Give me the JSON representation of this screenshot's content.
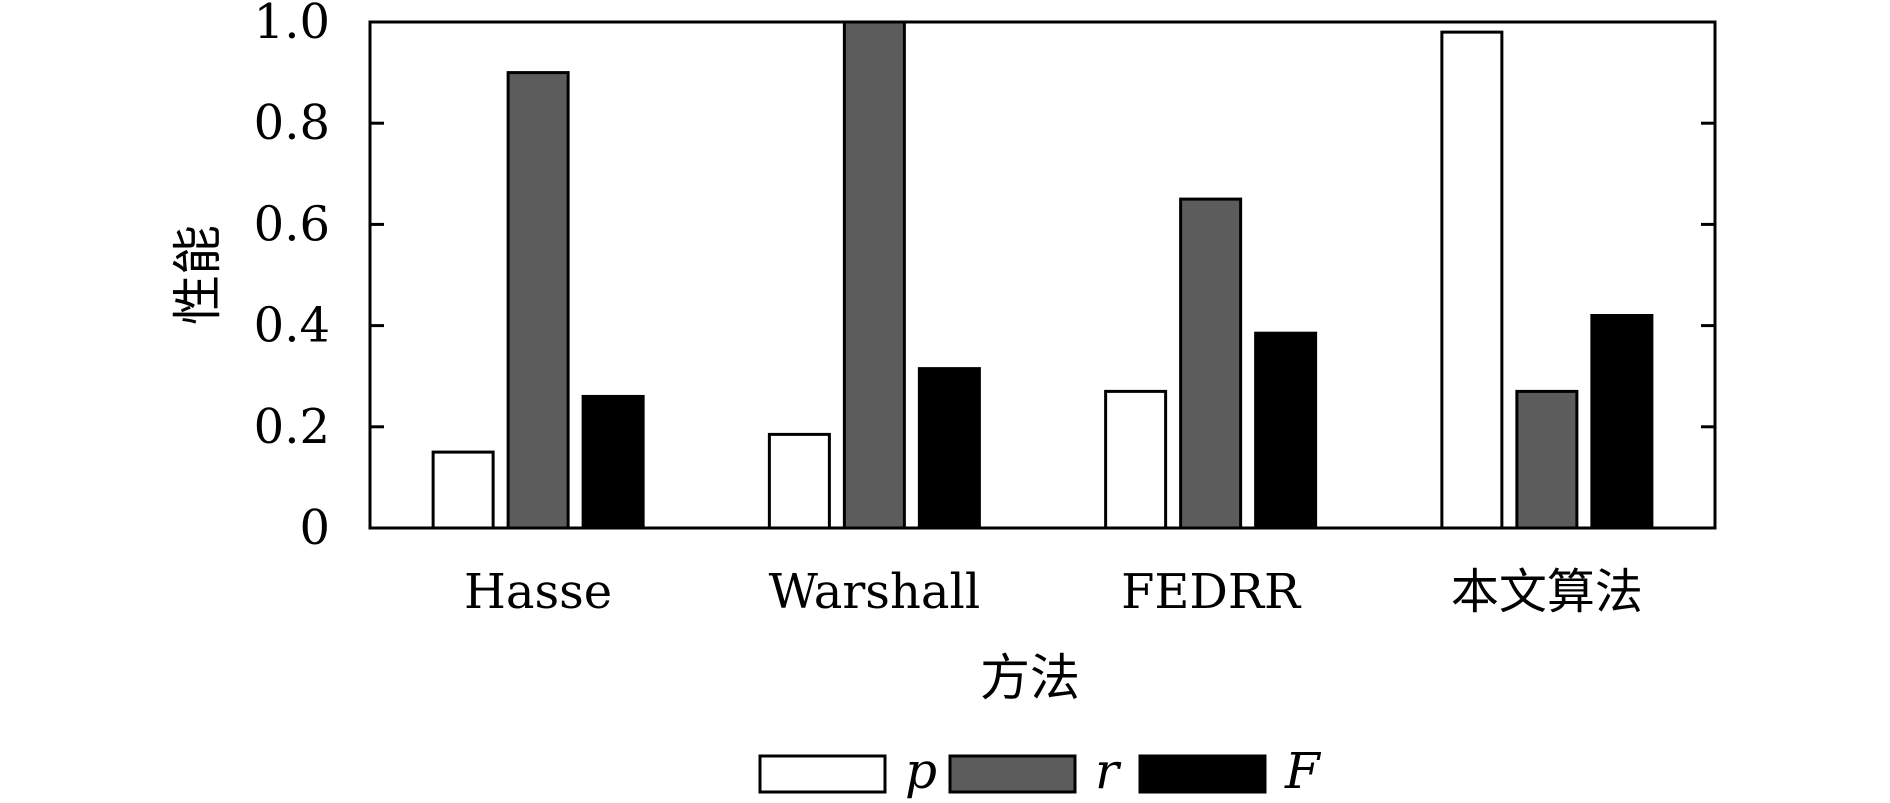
{
  "chart_data": {
    "type": "bar",
    "categories": [
      "Hasse",
      "Warshall",
      "FEDRR",
      "本文算法"
    ],
    "series": [
      {
        "name": "p",
        "values": [
          0.15,
          0.185,
          0.27,
          0.98
        ],
        "color": "#ffffff"
      },
      {
        "name": "r",
        "values": [
          0.9,
          1.0,
          0.65,
          0.27
        ],
        "color": "#5c5c5c"
      },
      {
        "name": "F",
        "values": [
          0.26,
          0.315,
          0.385,
          0.42
        ],
        "color": "#000000"
      }
    ],
    "xlabel": "方法",
    "ylabel": "性能",
    "ylim": [
      0,
      1.0
    ],
    "yticks": [
      0,
      0.2,
      0.4,
      0.6,
      0.8,
      1.0
    ],
    "ytick_labels": [
      "0",
      "0.2",
      "0.4",
      "0.6",
      "0.8",
      "1.0"
    ],
    "grid": false,
    "legend_position": "bottom-center"
  }
}
